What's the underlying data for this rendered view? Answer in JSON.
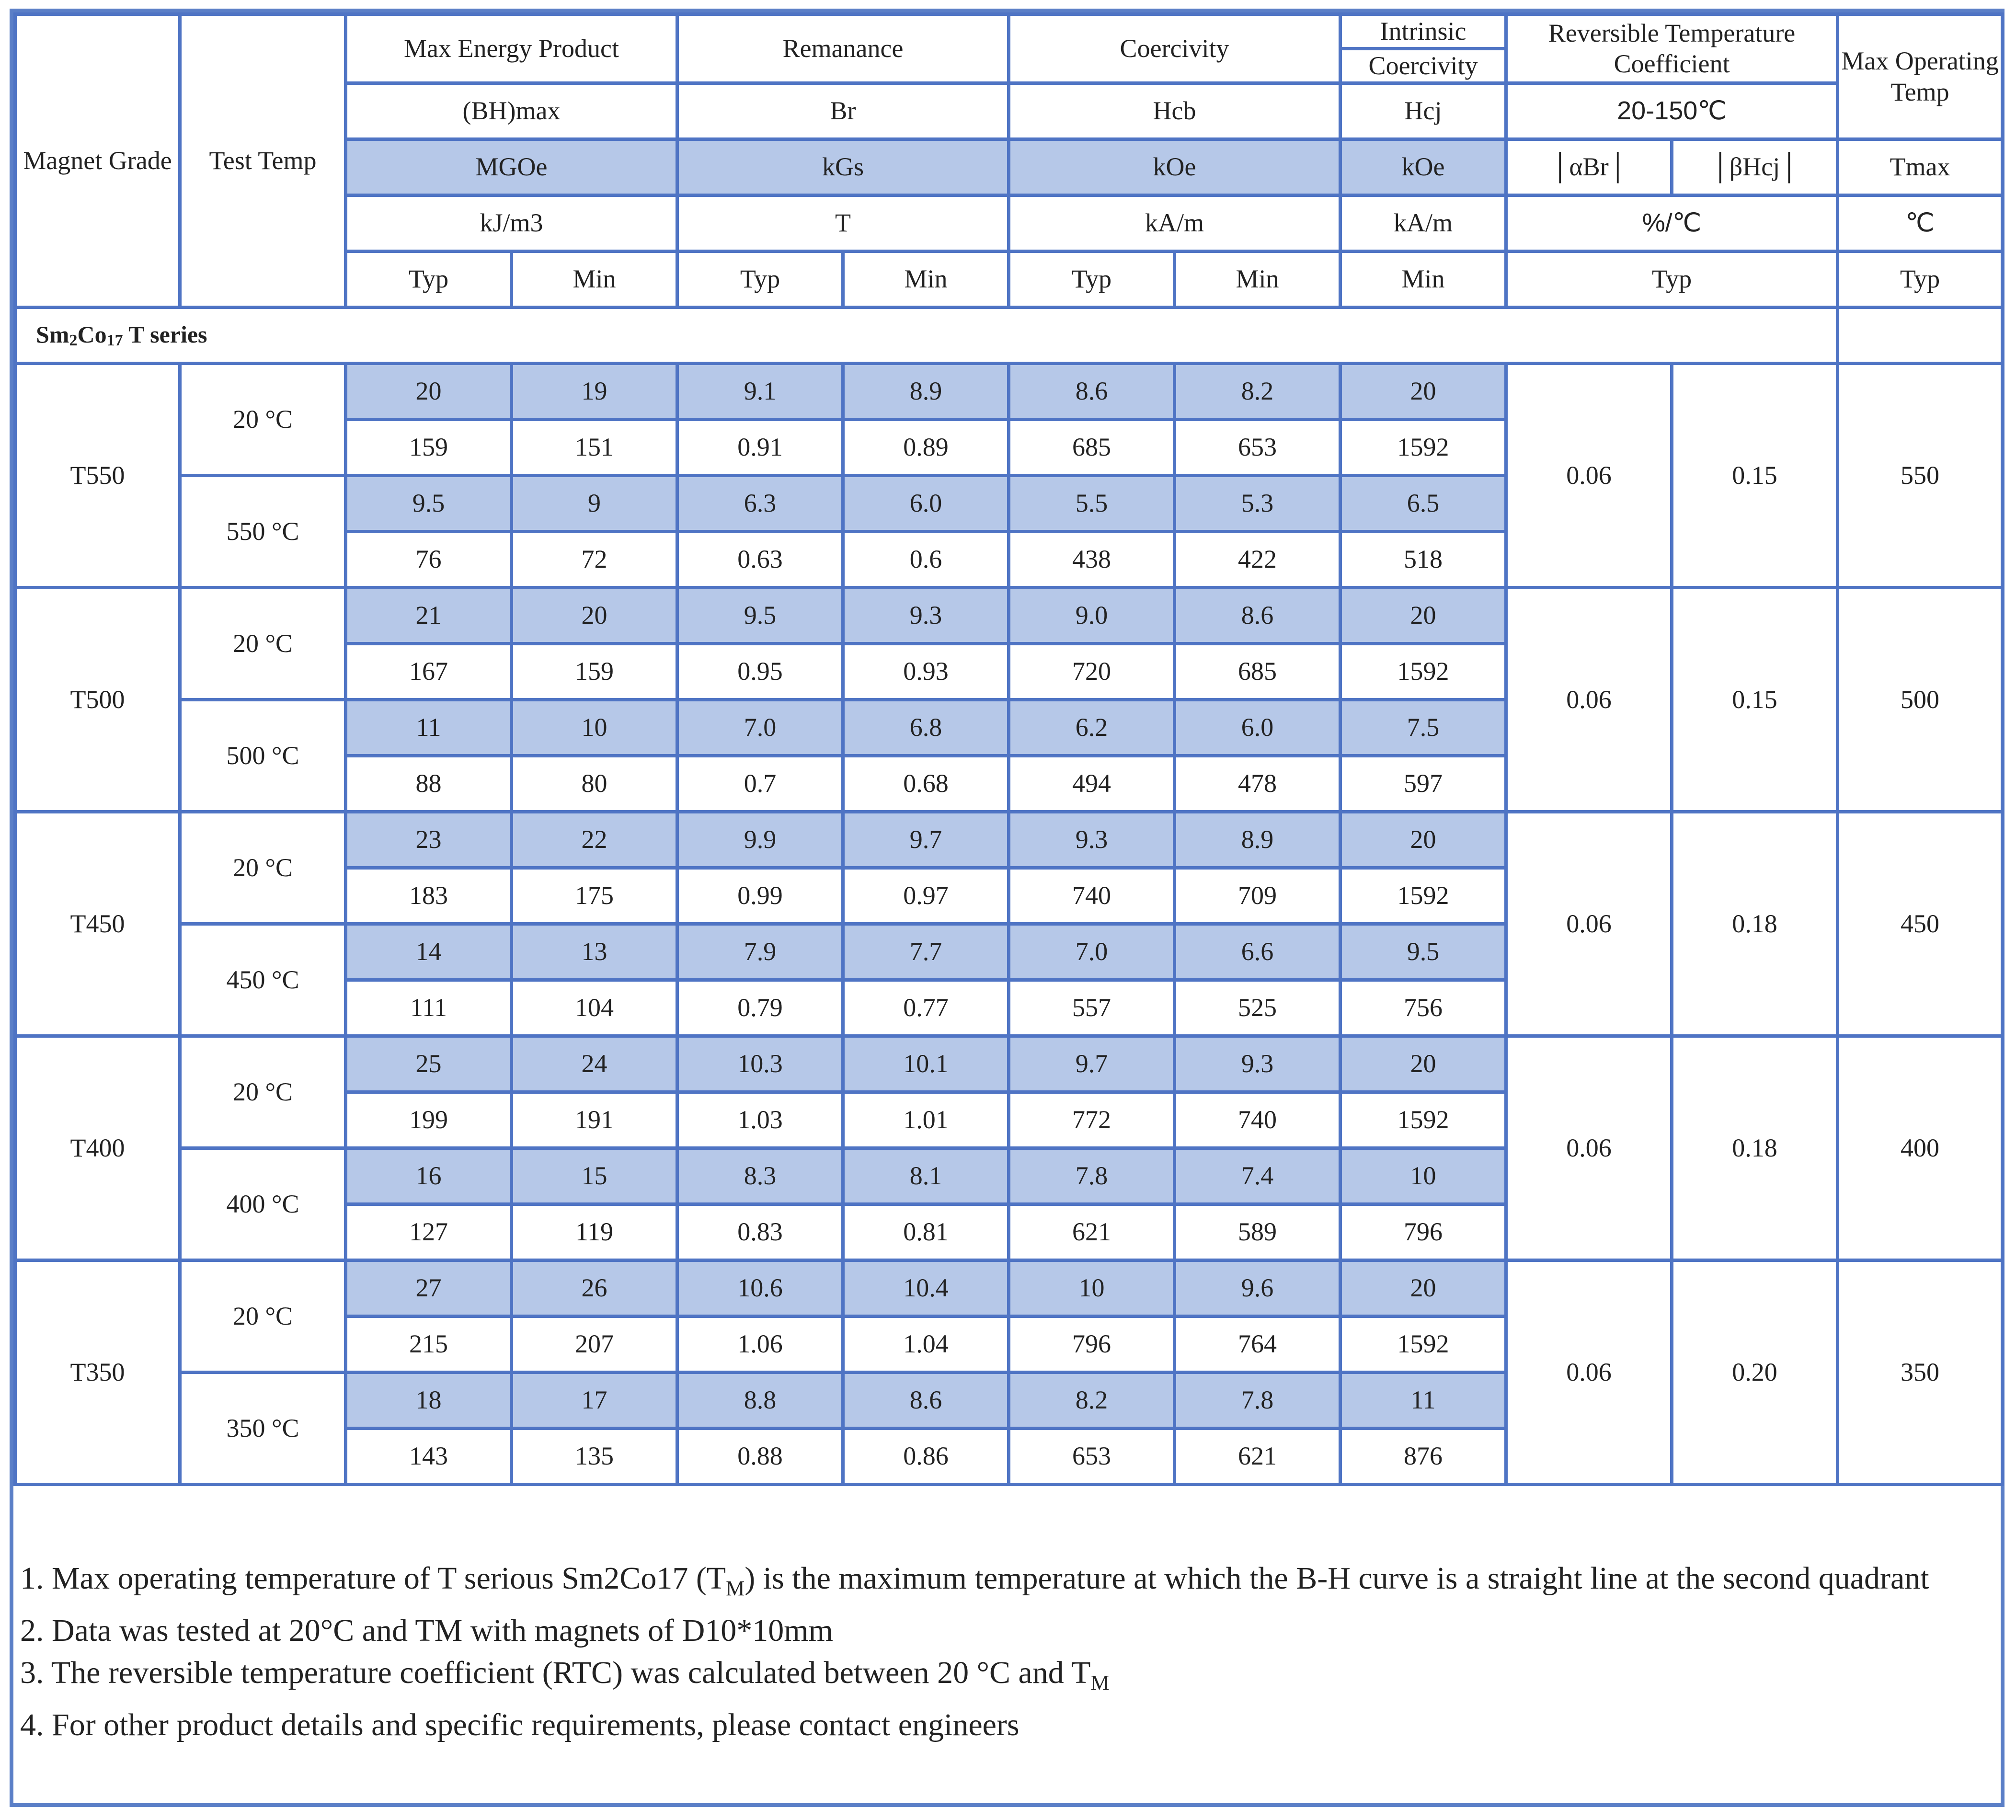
{
  "header": {
    "magnet_grade": "Magnet Grade",
    "test_temp": "Test Temp",
    "max_energy_product": "Max Energy Product",
    "remanance": "Remanance",
    "coercivity": "Coercivity",
    "intrinsic": "Intrinsic",
    "intrinsic_coercivity": "Coercivity",
    "rtc": "Reversible Temperature Coefficient",
    "max_operating_temp": "Max Operating Temp",
    "symbols": {
      "bhmax": "(BH)max",
      "br": "Br",
      "hcb": "Hcb",
      "hcj": "Hcj",
      "rtc_range": "20-150℃"
    },
    "units_cgs": {
      "bhmax": "MGOe",
      "br": "kGs",
      "hcb": "kOe",
      "hcj": "kOe",
      "alpha": "│αBr│",
      "beta": "│βHcj│",
      "tmax": "Tmax"
    },
    "units_si": {
      "bhmax": "kJ/m3",
      "br": "T",
      "hcb": "kA/m",
      "hcj": "kA/m",
      "rtc": "%/℃",
      "tmax": "℃"
    },
    "typ": "Typ",
    "min": "Min"
  },
  "series": {
    "prefix": "Sm",
    "sub1": "2",
    "mid": "Co",
    "sub2": "17",
    "suffix": " T series"
  },
  "grades": [
    {
      "grade": "T550",
      "alpha_br": "0.06",
      "beta_hcj": "0.15",
      "tmax": "550",
      "temps": [
        {
          "label": "20 °C",
          "cgs": [
            "20",
            "19",
            "9.1",
            "8.9",
            "8.6",
            "8.2",
            "20"
          ],
          "si": [
            "159",
            "151",
            "0.91",
            "0.89",
            "685",
            "653",
            "1592"
          ]
        },
        {
          "label": "550 °C",
          "cgs": [
            "9.5",
            "9",
            "6.3",
            "6.0",
            "5.5",
            "5.3",
            "6.5"
          ],
          "si": [
            "76",
            "72",
            "0.63",
            "0.6",
            "438",
            "422",
            "518"
          ]
        }
      ]
    },
    {
      "grade": "T500",
      "alpha_br": "0.06",
      "beta_hcj": "0.15",
      "tmax": "500",
      "temps": [
        {
          "label": "20 °C",
          "cgs": [
            "21",
            "20",
            "9.5",
            "9.3",
            "9.0",
            "8.6",
            "20"
          ],
          "si": [
            "167",
            "159",
            "0.95",
            "0.93",
            "720",
            "685",
            "1592"
          ]
        },
        {
          "label": "500 °C",
          "cgs": [
            "11",
            "10",
            "7.0",
            "6.8",
            "6.2",
            "6.0",
            "7.5"
          ],
          "si": [
            "88",
            "80",
            "0.7",
            "0.68",
            "494",
            "478",
            "597"
          ]
        }
      ]
    },
    {
      "grade": "T450",
      "alpha_br": "0.06",
      "beta_hcj": "0.18",
      "tmax": "450",
      "temps": [
        {
          "label": "20 °C",
          "cgs": [
            "23",
            "22",
            "9.9",
            "9.7",
            "9.3",
            "8.9",
            "20"
          ],
          "si": [
            "183",
            "175",
            "0.99",
            "0.97",
            "740",
            "709",
            "1592"
          ]
        },
        {
          "label": "450 °C",
          "cgs": [
            "14",
            "13",
            "7.9",
            "7.7",
            "7.0",
            "6.6",
            "9.5"
          ],
          "si": [
            "111",
            "104",
            "0.79",
            "0.77",
            "557",
            "525",
            "756"
          ]
        }
      ]
    },
    {
      "grade": "T400",
      "alpha_br": "0.06",
      "beta_hcj": "0.18",
      "tmax": "400",
      "temps": [
        {
          "label": "20 °C",
          "cgs": [
            "25",
            "24",
            "10.3",
            "10.1",
            "9.7",
            "9.3",
            "20"
          ],
          "si": [
            "199",
            "191",
            "1.03",
            "1.01",
            "772",
            "740",
            "1592"
          ]
        },
        {
          "label": "400 °C",
          "cgs": [
            "16",
            "15",
            "8.3",
            "8.1",
            "7.8",
            "7.4",
            "10"
          ],
          "si": [
            "127",
            "119",
            "0.83",
            "0.81",
            "621",
            "589",
            "796"
          ]
        }
      ]
    },
    {
      "grade": "T350",
      "alpha_br": "0.06",
      "beta_hcj": "0.20",
      "tmax": "350",
      "temps": [
        {
          "label": "20 °C",
          "cgs": [
            "27",
            "26",
            "10.6",
            "10.4",
            "10",
            "9.6",
            "20"
          ],
          "si": [
            "215",
            "207",
            "1.06",
            "1.04",
            "796",
            "764",
            "1592"
          ]
        },
        {
          "label": "350 °C",
          "cgs": [
            "18",
            "17",
            "8.8",
            "8.6",
            "8.2",
            "7.8",
            "11"
          ],
          "si": [
            "143",
            "135",
            "0.88",
            "0.86",
            "653",
            "621",
            "876"
          ]
        }
      ]
    }
  ],
  "notes": {
    "n1_a": "1. Max operating temperature of T serious Sm2Co17 (T",
    "n1_sub": "M",
    "n1_b": ") is the maximum temperature at which the B-H curve is a straight line at the second quadrant",
    "n2": "2. Data was tested at 20°C and TM with magnets of D10*10mm",
    "n3_a": "3. The reversible temperature coefficient (RTC) was calculated between 20 °C and T",
    "n3_sub": "M",
    "n4": "4. For other product details and specific requirements, please contact engineers"
  }
}
